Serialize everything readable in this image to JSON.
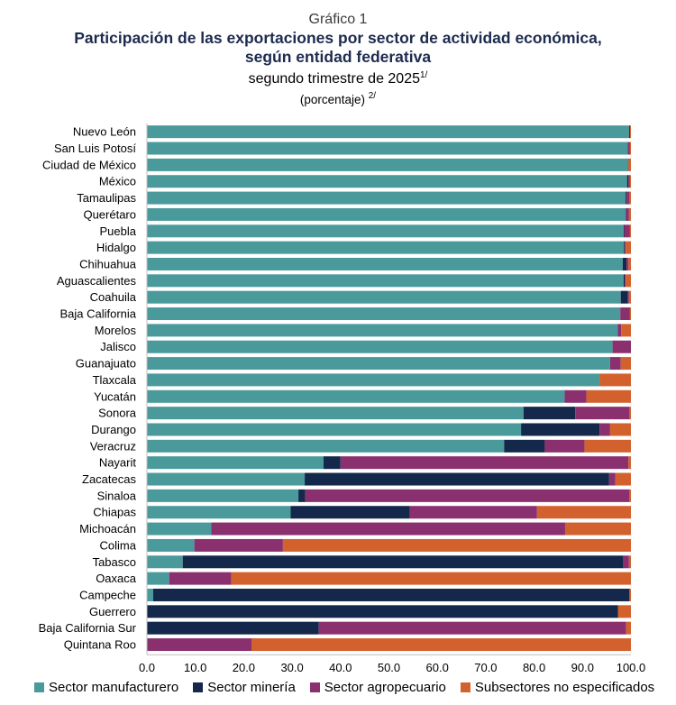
{
  "header": {
    "kicker": "Gráfico 1",
    "title_line1": "Participación de las exportaciones por sector de actividad económica,",
    "title_line2": "según entidad federativa",
    "subtitle": "segundo trimestre de 2025",
    "subtitle_note": "1/",
    "unit": "(porcentaje)",
    "unit_note": "2/"
  },
  "chart_data": {
    "type": "bar",
    "orientation": "horizontal",
    "stacked": true,
    "xlim": [
      0,
      100
    ],
    "xticks": [
      "0.0",
      "10.0",
      "20.0",
      "30.0",
      "40.0",
      "50.0",
      "60.0",
      "70.0",
      "80.0",
      "90.0",
      "100.0"
    ],
    "legend_position": "bottom",
    "categories": [
      "Nuevo León",
      "San Luis Potosí",
      "Ciudad de México",
      "México",
      "Tamaulipas",
      "Querétaro",
      "Puebla",
      "Hidalgo",
      "Chihuahua",
      "Aguascalientes",
      "Coahuila",
      "Baja California",
      "Morelos",
      "Jalisco",
      "Guanajuato",
      "Tlaxcala",
      "Yucatán",
      "Sonora",
      "Durango",
      "Veracruz",
      "Nayarit",
      "Zacatecas",
      "Sinaloa",
      "Chiapas",
      "Michoacán",
      "Colima",
      "Tabasco",
      "Oaxaca",
      "Campeche",
      "Guerrero",
      "Baja California Sur",
      "Quintana Roo"
    ],
    "series": [
      {
        "name": "Sector manufacturero",
        "color": "#4a9a9c",
        "values": [
          99.6,
          99.3,
          99.4,
          99.2,
          98.9,
          98.9,
          98.5,
          98.6,
          98.3,
          98.5,
          97.9,
          97.8,
          97.3,
          96.2,
          95.7,
          93.5,
          86.3,
          77.8,
          77.3,
          73.8,
          36.5,
          32.6,
          31.3,
          29.7,
          13.3,
          9.8,
          7.4,
          4.6,
          1.3,
          0.0,
          0.0,
          0.0
        ]
      },
      {
        "name": "Sector minería",
        "color": "#13284b",
        "values": [
          0.2,
          0.1,
          0.1,
          0.3,
          0.2,
          0.1,
          0.1,
          0.1,
          0.8,
          0.2,
          1.5,
          0.0,
          0.0,
          0.0,
          0.0,
          0.0,
          0.0,
          10.7,
          16.2,
          8.4,
          3.5,
          62.9,
          1.4,
          24.6,
          0.0,
          0.0,
          91.0,
          0.0,
          98.4,
          97.3,
          35.5,
          0.0
        ]
      },
      {
        "name": "Sector agropecuario",
        "color": "#8a306f",
        "values": [
          0.0,
          0.4,
          0.0,
          0.3,
          0.6,
          0.6,
          1.2,
          0.2,
          0.4,
          0.2,
          0.2,
          2.0,
          0.7,
          3.8,
          2.2,
          0.0,
          4.5,
          11.2,
          2.2,
          8.2,
          59.5,
          1.3,
          67.0,
          26.3,
          73.1,
          18.3,
          1.2,
          12.8,
          0.0,
          0.0,
          63.5,
          21.6
        ]
      },
      {
        "name": "Subsectores no especificados",
        "color": "#d3612d",
        "values": [
          0.2,
          0.2,
          0.5,
          0.2,
          0.3,
          0.4,
          0.2,
          1.1,
          0.5,
          1.1,
          0.4,
          0.2,
          2.0,
          0.0,
          2.1,
          6.5,
          9.2,
          0.3,
          4.3,
          9.6,
          0.5,
          3.2,
          0.3,
          19.4,
          13.6,
          71.9,
          0.4,
          82.6,
          0.3,
          2.7,
          1.0,
          78.4
        ]
      }
    ]
  }
}
